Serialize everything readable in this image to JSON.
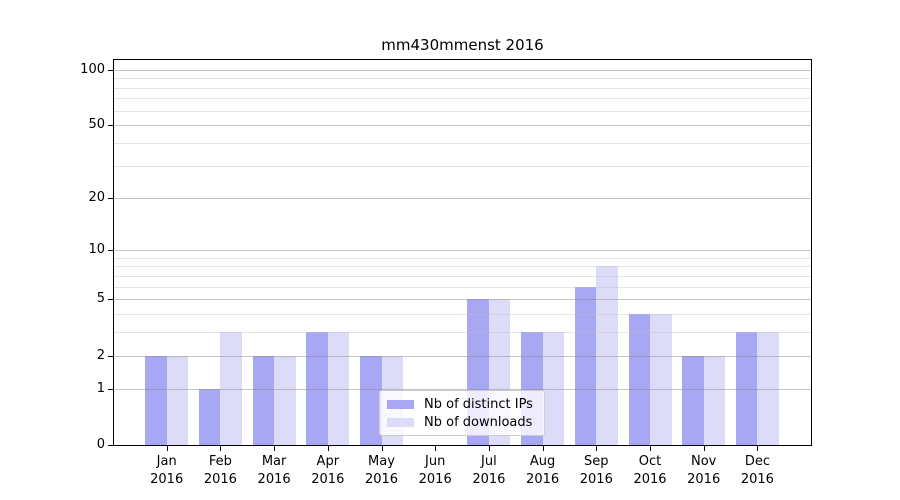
{
  "chart_data": {
    "type": "bar",
    "title": "mm430mmenst 2016",
    "categories": [
      "Jan 2016",
      "Feb 2016",
      "Mar 2016",
      "Apr 2016",
      "May 2016",
      "Jun 2016",
      "Jul 2016",
      "Aug 2016",
      "Sep 2016",
      "Oct 2016",
      "Nov 2016",
      "Dec 2016"
    ],
    "x_tick_line1": [
      "Jan",
      "Feb",
      "Mar",
      "Apr",
      "May",
      "Jun",
      "Jul",
      "Aug",
      "Sep",
      "Oct",
      "Nov",
      "Dec"
    ],
    "x_tick_line2": "2016",
    "series": [
      {
        "name": "Nb of distinct IPs",
        "color": "#a7a7f3",
        "values": [
          2,
          1,
          2,
          3,
          2,
          0,
          5,
          3,
          6,
          4,
          2,
          3
        ]
      },
      {
        "name": "Nb of downloads",
        "color": "#dcdcf9",
        "values": [
          2,
          3,
          2,
          3,
          2,
          0,
          5,
          3,
          8,
          4,
          2,
          3
        ]
      }
    ],
    "xlabel": "",
    "ylabel": "",
    "yscale": "log1p",
    "ylim": [
      0,
      113
    ],
    "yticks": [
      0,
      1,
      2,
      5,
      10,
      20,
      50,
      100
    ],
    "yticks_minor": [
      3,
      4,
      6,
      7,
      8,
      9,
      30,
      40,
      60,
      70,
      80,
      90
    ],
    "grid": "on",
    "legend": {
      "position": "lower center inside",
      "entries": [
        "Nb of distinct IPs",
        "Nb of downloads"
      ]
    }
  },
  "colors": {
    "background": "#ffffff",
    "bar_distinct_ips": "#a7a7f3",
    "bar_downloads": "#dcdcf9",
    "grid_major": "rgba(140,140,140,0.50)",
    "grid_minor": "rgba(190,190,190,0.40)",
    "axis": "#000000",
    "legend_border": "#cccccc",
    "legend_background": "rgba(255,255,255,0.8)"
  }
}
